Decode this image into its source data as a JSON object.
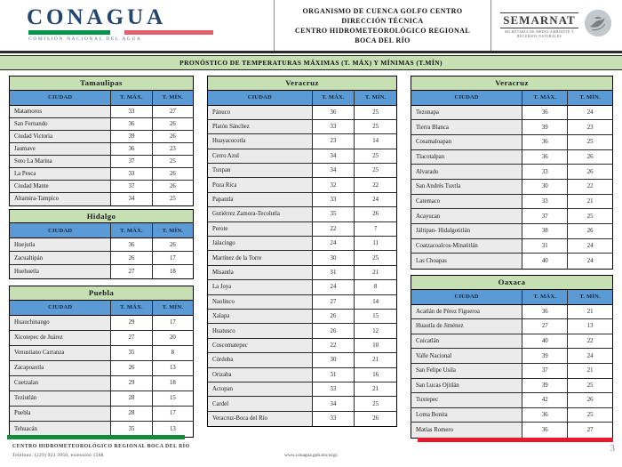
{
  "header": {
    "conagua": {
      "wordmark": "CONAGUA",
      "subtitle": "COMISIÓN NACIONAL DEL AGUA"
    },
    "center_lines": [
      "ORGANISMO DE CUENCA GOLFO CENTRO",
      "DIRECCIÓN TÉCNICA",
      "CENTRO HIDROMETEOROLÓGICO REGIONAL",
      "BOCA DEL RÍO"
    ],
    "semarnat": {
      "wordmark": "SEMARNAT",
      "subtitle": "SECRETARÍA DE MEDIO AMBIENTE Y RECURSOS NATURALES"
    }
  },
  "title_bar": "PRONÓSTICO DE TEMPERATURAS MÁXIMAS (T. MÁX) Y MÍNIMAS (T.MÍN)",
  "column_headers": {
    "city": "CIUDAD",
    "tmax": "T. MÁX.",
    "tmin": "T. MÍN."
  },
  "tables": {
    "tamaulipas": {
      "state": "Tamaulipas",
      "rows": [
        [
          "Matamoros",
          "33",
          "27"
        ],
        [
          "San Fernando",
          "36",
          "26"
        ],
        [
          "Ciudad Victoria",
          "39",
          "26"
        ],
        [
          "Jaumave",
          "36",
          "23"
        ],
        [
          "Soto La Marina",
          "37",
          "25"
        ],
        [
          "La Pesca",
          "33",
          "26"
        ],
        [
          "Ciudad Mante",
          "37",
          "26"
        ],
        [
          "Altamira-Tampico",
          "34",
          "25"
        ]
      ]
    },
    "hidalgo": {
      "state": "Hidalgo",
      "rows": [
        [
          "Huejutla",
          "36",
          "26"
        ],
        [
          "Zacualtipán",
          "26",
          "17"
        ],
        [
          "Huehuetla",
          "27",
          "18"
        ]
      ]
    },
    "puebla": {
      "state": "Puebla",
      "rows": [
        [
          "Huauchinango",
          "29",
          "17"
        ],
        [
          "Xicotepec de Juárez",
          "27",
          "20"
        ],
        [
          "Venustiano Carranza",
          "35",
          "8"
        ],
        [
          "Zacapoaxtla",
          "26",
          "13"
        ],
        [
          "Cuetzalan",
          "29",
          "18"
        ],
        [
          "Teziutlán",
          "28",
          "15"
        ],
        [
          "Puebla",
          "28",
          "17"
        ],
        [
          "Tehuacán",
          "35",
          "13"
        ]
      ]
    },
    "veracruz_a": {
      "state": "Veracruz",
      "rows": [
        [
          "Pánuco",
          "36",
          "25"
        ],
        [
          "Platón Sánchez",
          "33",
          "25"
        ],
        [
          "Huayacocotla",
          "23",
          "14"
        ],
        [
          "Cerro Azul",
          "34",
          "25"
        ],
        [
          "Tuxpan",
          "34",
          "25"
        ],
        [
          "Poza Rica",
          "32",
          "22"
        ],
        [
          "Papantla",
          "33",
          "24"
        ],
        [
          "Gutiérrez Zamora-Tecolutla",
          "35",
          "26"
        ],
        [
          "Perote",
          "22",
          "7"
        ],
        [
          "Jalacingo",
          "24",
          "11"
        ],
        [
          "Martínez de la Torre",
          "30",
          "25"
        ],
        [
          "Misantla",
          "31",
          "21"
        ],
        [
          "La Joya",
          "24",
          "8"
        ],
        [
          "Naolinco",
          "27",
          "14"
        ],
        [
          "Xalapa",
          "26",
          "15"
        ],
        [
          "Huatusco",
          "26",
          "12"
        ],
        [
          "Coscomatepec",
          "22",
          "10"
        ],
        [
          "Córdoba",
          "30",
          "21"
        ],
        [
          "Orizaba",
          "31",
          "16"
        ],
        [
          "Actopan",
          "33",
          "21"
        ],
        [
          "Cardel",
          "34",
          "25"
        ],
        [
          "Veracruz-Boca del Río",
          "33",
          "26"
        ]
      ]
    },
    "veracruz_b": {
      "state": "Veracruz",
      "rows": [
        [
          "Tezonapa",
          "36",
          "24"
        ],
        [
          "Tierra Blanca",
          "39",
          "23"
        ],
        [
          "Cosamaloapan",
          "36",
          "25"
        ],
        [
          "Tlacotalpan",
          "36",
          "26"
        ],
        [
          "Alvarado",
          "33",
          "26"
        ],
        [
          "San Andrés Tuxtla",
          "30",
          "22"
        ],
        [
          "Catemaco",
          "33",
          "21"
        ],
        [
          "Acayucan",
          "37",
          "25"
        ],
        [
          "Jáltipan- Hidalgotitlán",
          "38",
          "26"
        ],
        [
          "Coatzacoalcos-Minatitlán",
          "31",
          "24"
        ],
        [
          "Las Choapas",
          "40",
          "24"
        ]
      ]
    },
    "oaxaca": {
      "state": "Oaxaca",
      "rows": [
        [
          "Acatlán de Pérez Figueroa",
          "36",
          "21"
        ],
        [
          "Huautla de Jiménez",
          "27",
          "13"
        ],
        [
          "Cuicatlán",
          "40",
          "22"
        ],
        [
          "Valle Nacional",
          "39",
          "24"
        ],
        [
          "San Felipe Usila",
          "37",
          "21"
        ],
        [
          "San Lucas Ojitlán",
          "39",
          "25"
        ],
        [
          "Tuxtepec",
          "42",
          "26"
        ],
        [
          "Loma Bonita",
          "36",
          "25"
        ],
        [
          "Matías Romero",
          "36",
          "27"
        ]
      ]
    }
  },
  "footer": {
    "office": "CENTRO HIDROMETEOROLÓGICO REGIONAL BOCA DEL RÍO",
    "phone": "Teléfono: (229) 923 3950, extensión 1568",
    "website": "www.conagua.gob.mx/ocgc",
    "page_number": "3"
  },
  "colors": {
    "green_header": "#c6e0b4",
    "blue_header": "#5b9bd5",
    "footer_green": "#138a3c",
    "footer_red": "#e8192c",
    "conagua_green": "#00934a",
    "conagua_red": "#e0606e"
  }
}
